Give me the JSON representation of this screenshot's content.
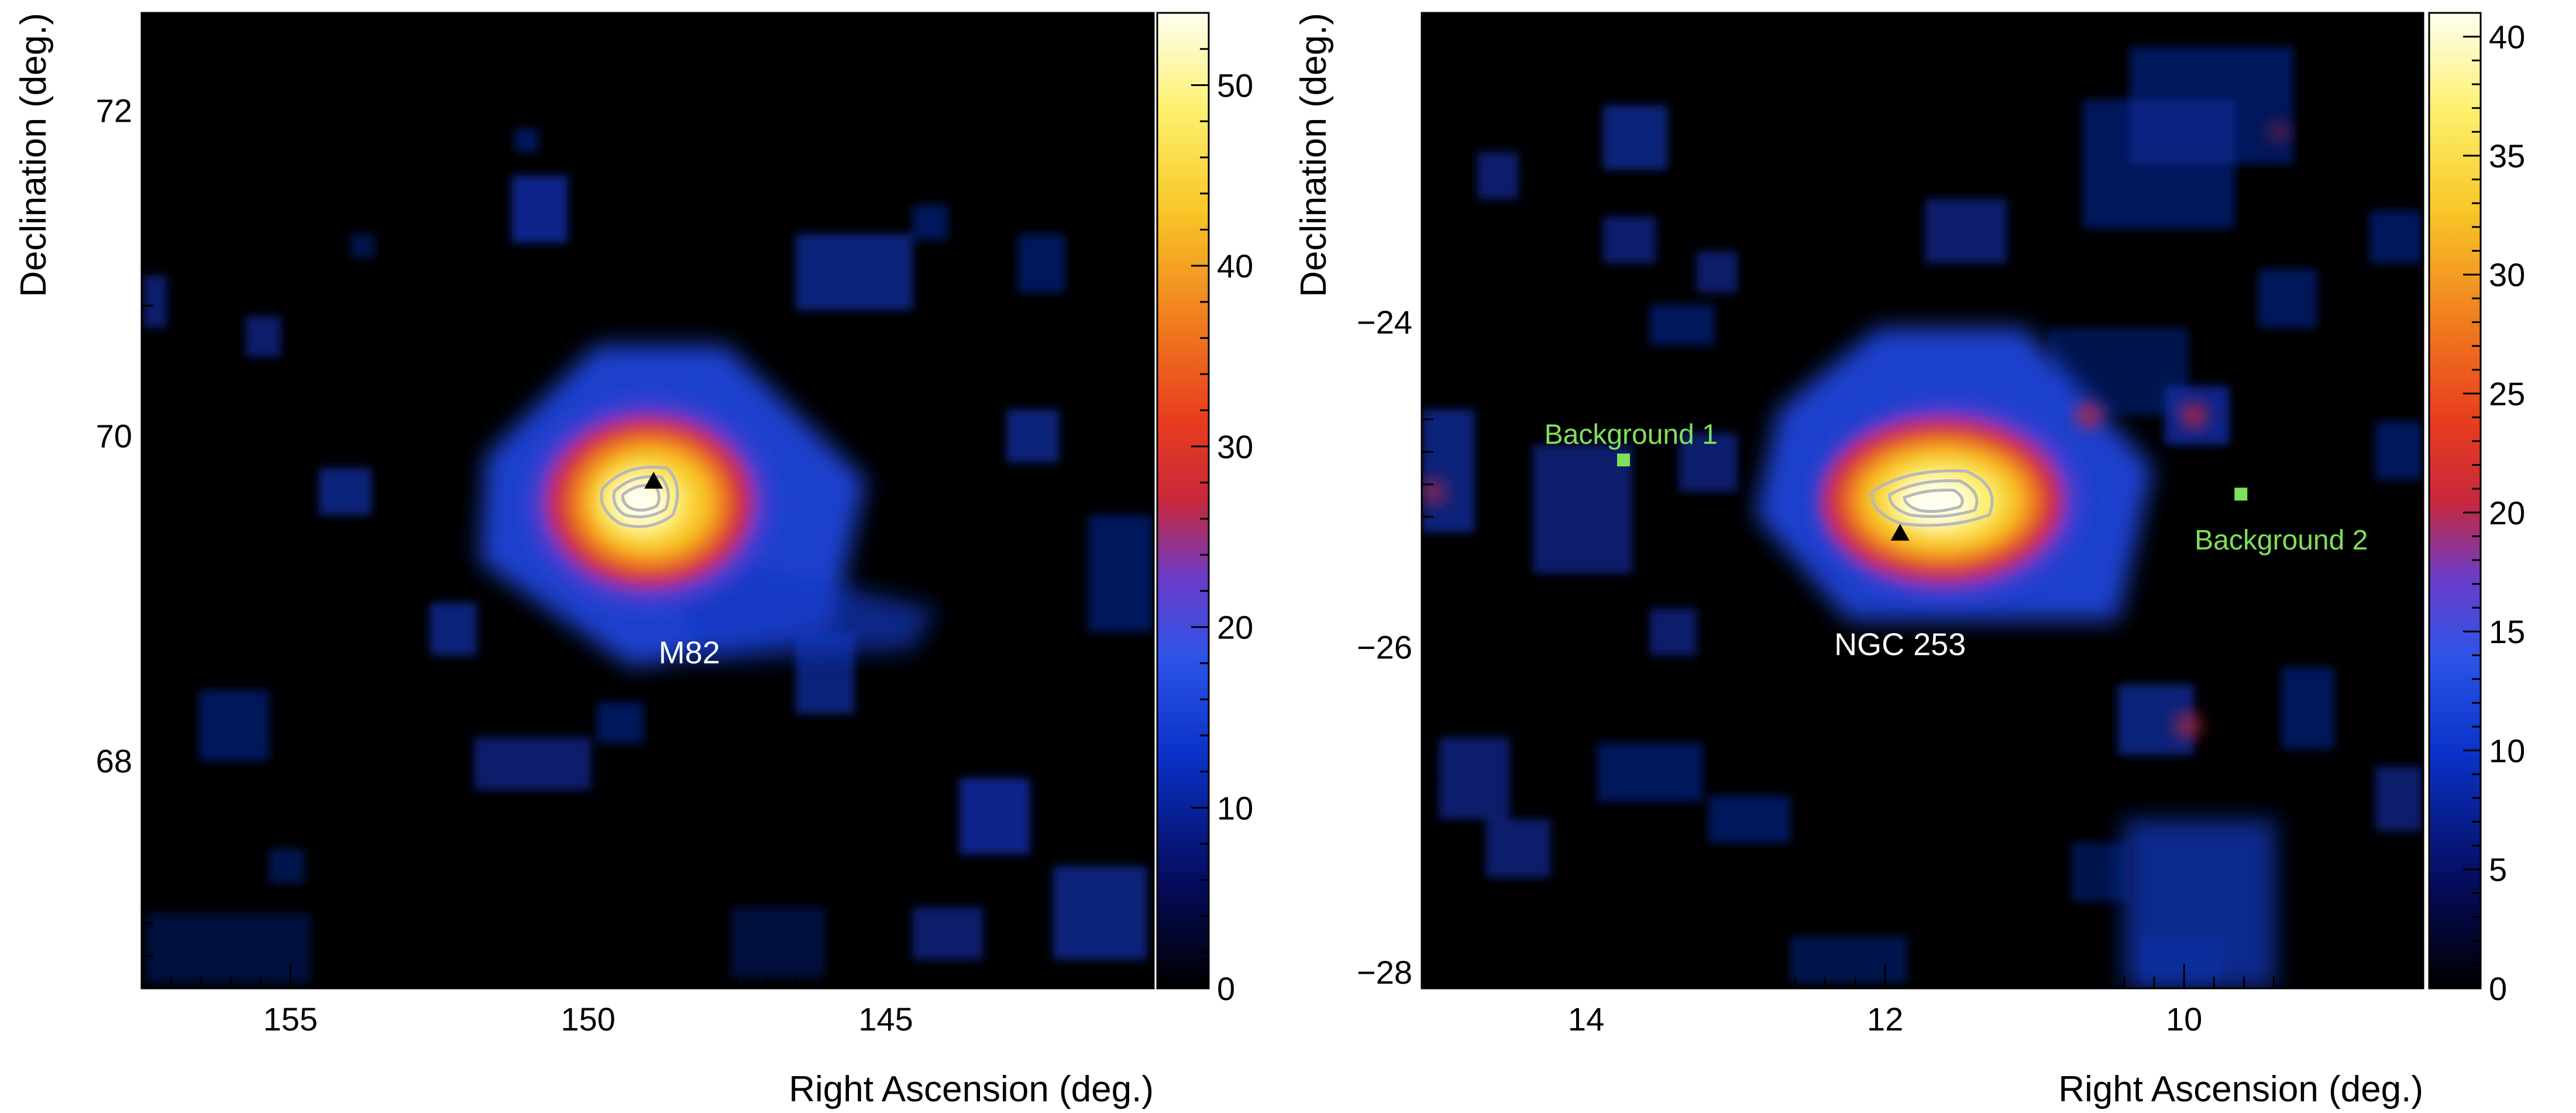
{
  "colors": {
    "background_label": "#7fe05a",
    "source_label": "#ffffff",
    "contour": "#b8b8b8",
    "marker": "#000000"
  },
  "chart_data": [
    {
      "type": "heatmap",
      "title": "",
      "xlabel": "Right Ascension (deg.)",
      "ylabel": "Declination (deg.)",
      "xlim": [
        157.5,
        140.5
      ],
      "ylim": [
        66.6,
        72.6
      ],
      "x_axis_reversed": true,
      "x_ticks": [
        155,
        150,
        145
      ],
      "y_ticks": [
        68,
        70,
        72
      ],
      "colorbar": {
        "range": [
          0,
          54
        ],
        "ticks": [
          0,
          10,
          20,
          30,
          40,
          50
        ]
      },
      "colormap": "black-blue-purple-red-orange-yellow-white",
      "grid": false,
      "peak": {
        "x": 149.6,
        "y": 69.65,
        "value": 54
      },
      "annotations": [
        {
          "text": "M82",
          "x": 148.3,
          "y": 68.6,
          "color": "#ffffff"
        }
      ],
      "markers": [
        {
          "shape": "triangle",
          "x": 148.9,
          "y": 69.72
        }
      ]
    },
    {
      "type": "heatmap",
      "title": "",
      "xlabel": "Right Ascension (deg.)",
      "ylabel": "Declination (deg.)",
      "xlim": [
        15.1,
        8.4
      ],
      "ylim": [
        -28.1,
        -22.1
      ],
      "x_axis_reversed": true,
      "x_ticks": [
        14,
        12,
        10
      ],
      "y_ticks": [
        -24,
        -26,
        -28
      ],
      "colorbar": {
        "range": [
          0,
          41
        ],
        "ticks": [
          0,
          5,
          10,
          15,
          20,
          25,
          30,
          35,
          40
        ]
      },
      "colormap": "black-blue-purple-red-orange-yellow-white",
      "grid": false,
      "peak": {
        "x": 11.9,
        "y": -25.15,
        "value": 41
      },
      "annotations": [
        {
          "text": "NGC 253",
          "x": 11.9,
          "y": -26.05,
          "color": "#ffffff"
        },
        {
          "text": "Background 1",
          "x": 13.7,
          "y": -24.75,
          "color": "#7fe05a"
        },
        {
          "text": "Background 2",
          "x": 9.35,
          "y": -25.4,
          "color": "#7fe05a"
        }
      ],
      "markers": [
        {
          "shape": "triangle",
          "x": 11.9,
          "y": -25.3
        },
        {
          "shape": "square",
          "x": 13.75,
          "y": -24.85
        },
        {
          "shape": "square",
          "x": 9.62,
          "y": -25.06
        }
      ]
    }
  ]
}
